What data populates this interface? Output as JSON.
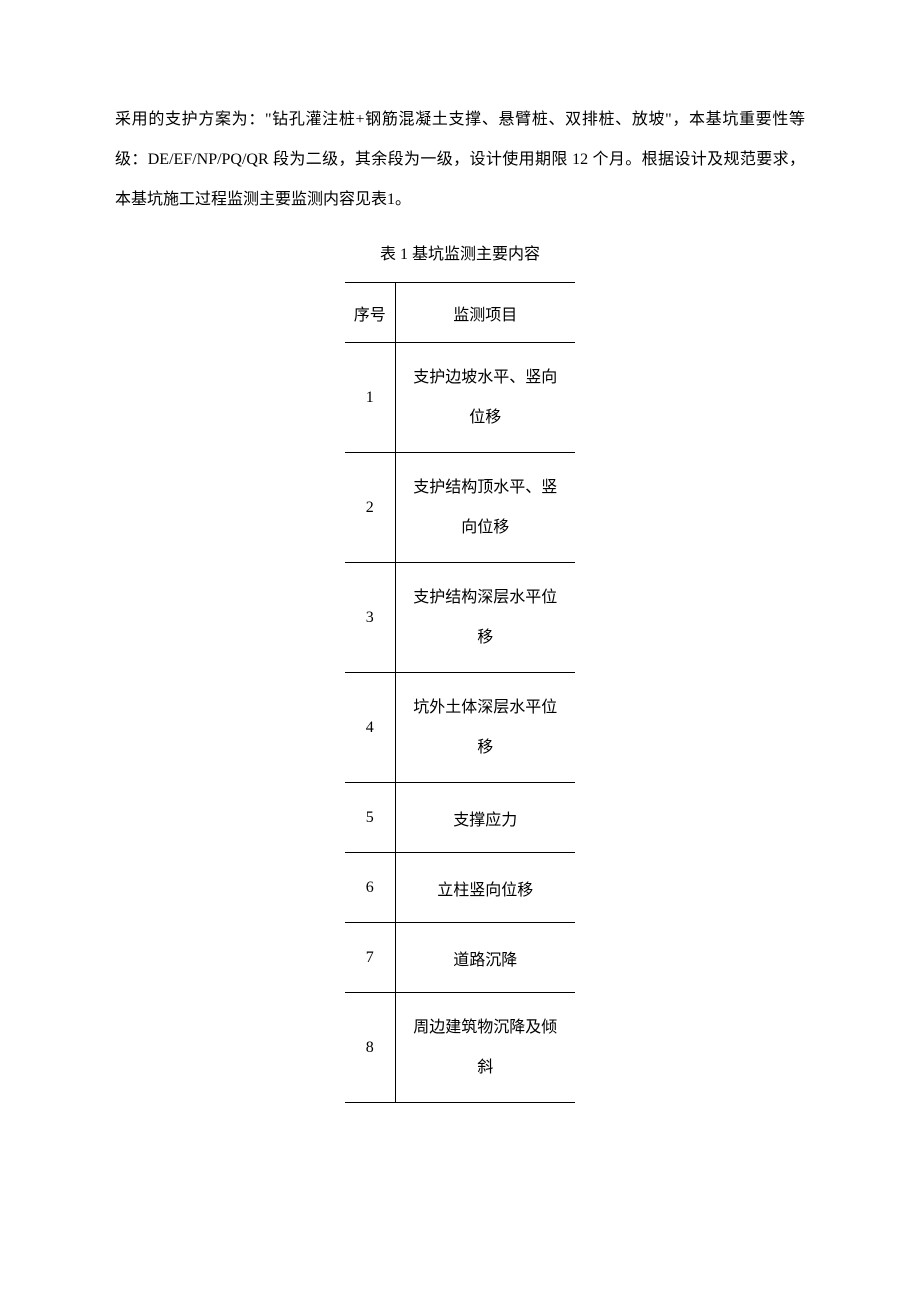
{
  "paragraph": "采用的支护方案为：\"钻孔灌注桩+钢筋混凝土支撑、悬臂桩、双排桩、放坡\"，本基坑重要性等级：DE/EF/NP/PQ/QR 段为二级，其余段为一级，设计使用期限 12 个月。根据设计及规范要求，本基坑施工过程监测主要监测内容见表1。",
  "table_caption": "表 1  基坑监测主要内容",
  "table": {
    "headers": {
      "index": "序号",
      "item": "监测项目"
    },
    "rows": [
      {
        "index": "1",
        "item_line1": "支护边坡水平、竖向",
        "item_line2": "位移",
        "tall": true
      },
      {
        "index": "2",
        "item_line1": "支护结构顶水平、竖",
        "item_line2": "向位移",
        "tall": true
      },
      {
        "index": "3",
        "item_line1": "支护结构深层水平位",
        "item_line2": "移",
        "tall": true
      },
      {
        "index": "4",
        "item_line1": "坑外土体深层水平位",
        "item_line2": "移",
        "tall": true
      },
      {
        "index": "5",
        "item_line1": "支撑应力",
        "item_line2": "",
        "tall": false
      },
      {
        "index": "6",
        "item_line1": "立柱竖向位移",
        "item_line2": "",
        "tall": false
      },
      {
        "index": "7",
        "item_line1": "道路沉降",
        "item_line2": "",
        "tall": false
      },
      {
        "index": "8",
        "item_line1": "周边建筑物沉降及倾",
        "item_line2": "斜",
        "tall": true
      }
    ]
  },
  "colors": {
    "background": "#ffffff",
    "text": "#000000",
    "border": "#000000"
  },
  "typography": {
    "body_fontsize": 16,
    "line_height": 2.5,
    "font_family": "SimSun"
  }
}
